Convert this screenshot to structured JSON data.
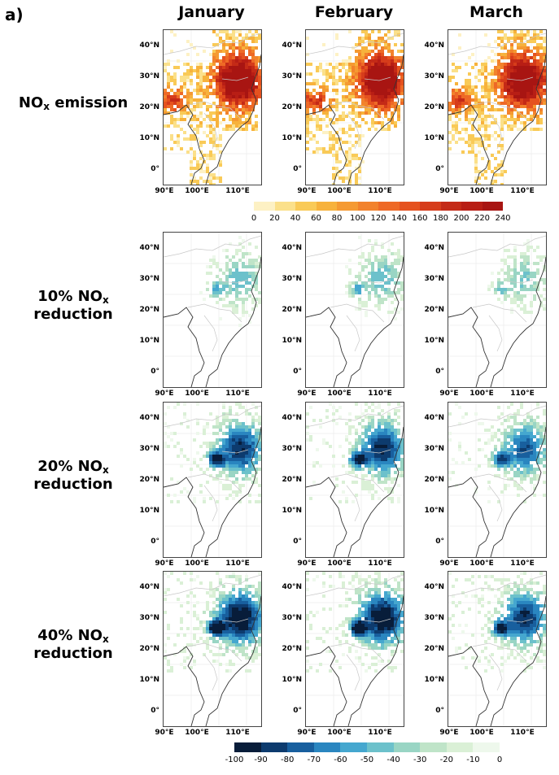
{
  "panel_label": "a)",
  "columns": [
    "January",
    "February",
    "March"
  ],
  "rows": [
    {
      "label_lines": [
        {
          "text": "NO",
          "sub": "x",
          "after": " emission"
        }
      ],
      "palette": "emission",
      "level": 0
    },
    {
      "label_lines": [
        {
          "text": "10% NO",
          "sub": "x",
          "after": ""
        },
        {
          "text": "reduction",
          "sub": "",
          "after": ""
        }
      ],
      "palette": "reduction",
      "level": 1
    },
    {
      "label_lines": [
        {
          "text": "20% NO",
          "sub": "x",
          "after": ""
        },
        {
          "text": "reduction",
          "sub": "",
          "after": ""
        }
      ],
      "palette": "reduction",
      "level": 2
    },
    {
      "label_lines": [
        {
          "text": "40% NO",
          "sub": "x",
          "after": ""
        },
        {
          "text": "reduction",
          "sub": "",
          "after": ""
        }
      ],
      "palette": "reduction",
      "level": 3
    }
  ],
  "lat_ticks": [
    "40°N",
    "30°N",
    "20°N",
    "10°N",
    "0°"
  ],
  "lon_ticks": [
    "90°E",
    "100°E",
    "110°E"
  ],
  "emission_colorbar": {
    "ticks": [
      "0",
      "20",
      "40",
      "60",
      "80",
      "100",
      "120",
      "140",
      "160",
      "180",
      "200",
      "220",
      "240"
    ],
    "colors": [
      "#fdf1c4",
      "#fbe08a",
      "#f9ca57",
      "#f7b23c",
      "#f59a32",
      "#f2822c",
      "#ee6926",
      "#e5521f",
      "#d63c1b",
      "#c42a17",
      "#b81e15",
      "#a81512"
    ]
  },
  "reduction_colorbar": {
    "ticks": [
      "-100",
      "-90",
      "-80",
      "-70",
      "-60",
      "-50",
      "-40",
      "-30",
      "-20",
      "-10",
      "0"
    ],
    "colors": [
      "#081d3a",
      "#0d3b6e",
      "#185f9e",
      "#2a86c0",
      "#45a7cf",
      "#6cc1cb",
      "#99d5c4",
      "#bfe4c8",
      "#daf0d6",
      "#eef8ec"
    ]
  }
}
